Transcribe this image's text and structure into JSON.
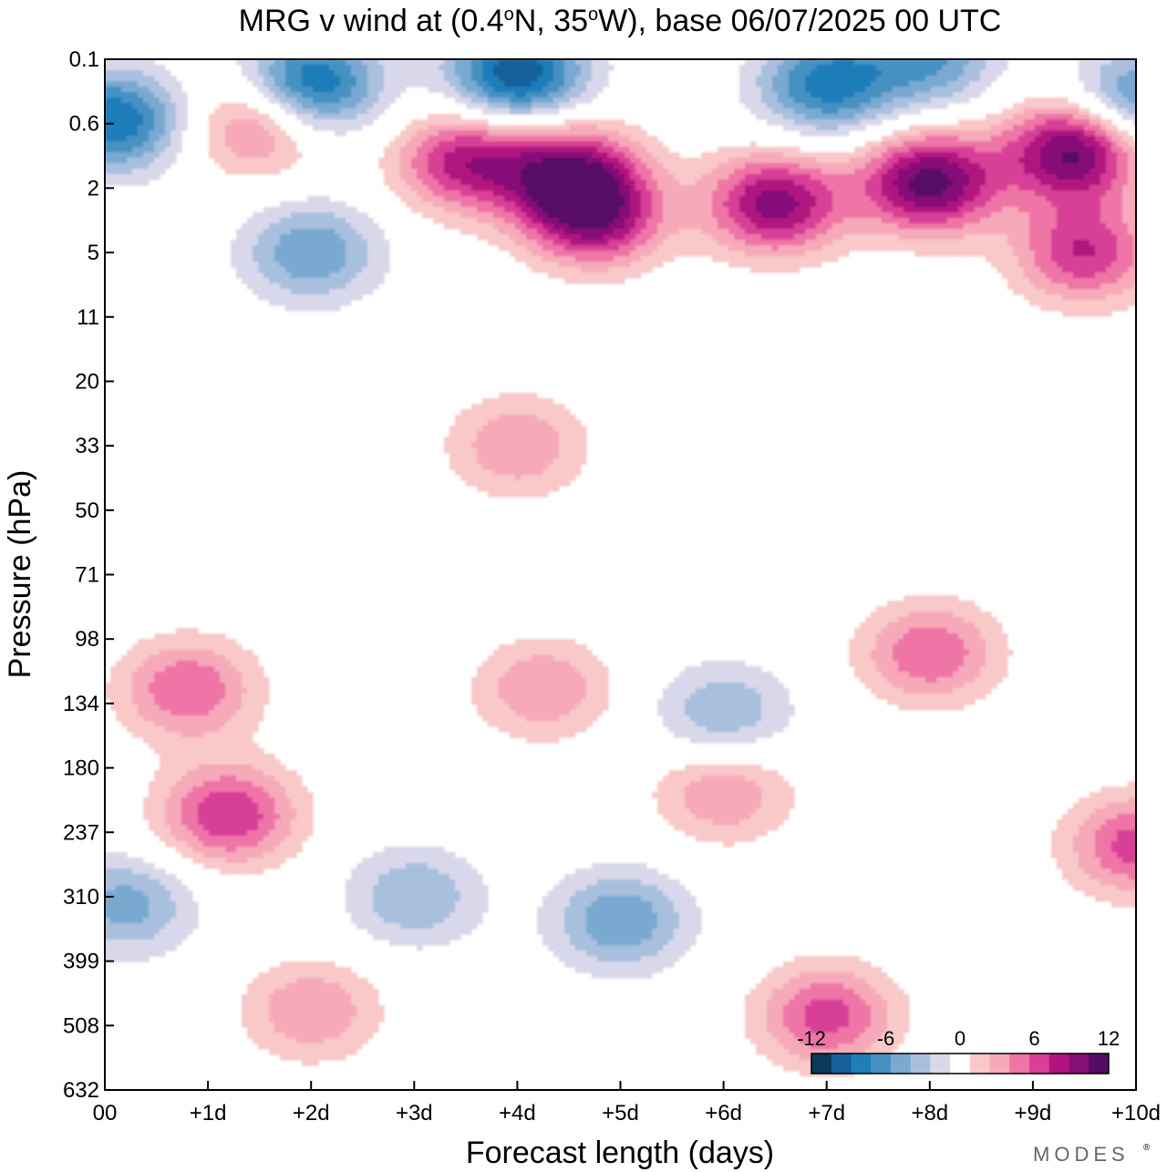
{
  "chart_data": {
    "type": "heatmap",
    "title_parts": [
      "MRG v wind at (0.4",
      "o",
      "N, 35",
      "o",
      "W),  base 06/07/2025  00 UTC"
    ],
    "xlabel": "Forecast length (days)",
    "ylabel": "Pressure (hPa)",
    "x_ticks": [
      "00",
      "+1d",
      "+2d",
      "+3d",
      "+4d",
      "+5d",
      "+6d",
      "+7d",
      "+8d",
      "+9d",
      "+10d"
    ],
    "y_ticks": [
      "0.1",
      "0.6",
      "2",
      "5",
      "11",
      "20",
      "33",
      "50",
      "71",
      "98",
      "134",
      "180",
      "237",
      "310",
      "399",
      "508",
      "632"
    ],
    "x_range_days": [
      0,
      10
    ],
    "y_range_hpa": [
      0.1,
      632
    ],
    "contour_levels": [
      -14,
      -12,
      -10,
      -8,
      -6,
      -4,
      -2,
      2,
      4,
      6,
      8,
      10,
      12,
      14
    ],
    "colorbar": {
      "labels": [
        "-12",
        "-6",
        "0",
        "6",
        "12"
      ],
      "colors": [
        "#0c3a58",
        "#15609a",
        "#1f7db9",
        "#4592c2",
        "#79a9d1",
        "#a9bfde",
        "#d8d8ea",
        "#ffffff",
        "#f9c8c8",
        "#f6a9b9",
        "#ee75a6",
        "#d83f97",
        "#b1137f",
        "#860f78",
        "#560b64"
      ]
    },
    "features": [
      {
        "x_day": 0.1,
        "p_hpa": 0.55,
        "value": -12
      },
      {
        "x_day": 2.0,
        "p_hpa": 0.2,
        "value": -13
      },
      {
        "x_day": 4.0,
        "p_hpa": 0.15,
        "value": -14
      },
      {
        "x_day": 7.0,
        "p_hpa": 0.2,
        "value": -11
      },
      {
        "x_day": 8.0,
        "p_hpa": 0.1,
        "value": -8
      },
      {
        "x_day": 10.0,
        "p_hpa": 0.3,
        "value": -9
      },
      {
        "x_day": 2.0,
        "p_hpa": 5.0,
        "value": -8
      },
      {
        "x_day": 1.5,
        "p_hpa": 0.6,
        "value": 8
      },
      {
        "x_day": 3.5,
        "p_hpa": 1.2,
        "value": 11
      },
      {
        "x_day": 4.5,
        "p_hpa": 1.5,
        "value": 12
      },
      {
        "x_day": 4.75,
        "p_hpa": 3.0,
        "value": 12
      },
      {
        "x_day": 6.5,
        "p_hpa": 2.5,
        "value": 13
      },
      {
        "x_day": 8.0,
        "p_hpa": 1.8,
        "value": 15
      },
      {
        "x_day": 9.4,
        "p_hpa": 1.0,
        "value": 15
      },
      {
        "x_day": 9.5,
        "p_hpa": 5.0,
        "value": 10
      },
      {
        "x_day": 4.0,
        "p_hpa": 33,
        "value": 6
      },
      {
        "x_day": 8.0,
        "p_hpa": 105,
        "value": 8
      },
      {
        "x_day": 4.25,
        "p_hpa": 125,
        "value": 6
      },
      {
        "x_day": 0.8,
        "p_hpa": 125,
        "value": 8
      },
      {
        "x_day": 1.2,
        "p_hpa": 220,
        "value": 10
      },
      {
        "x_day": 6.0,
        "p_hpa": 200,
        "value": 6
      },
      {
        "x_day": 10.0,
        "p_hpa": 250,
        "value": 9
      },
      {
        "x_day": 5.0,
        "p_hpa": 340,
        "value": -8
      },
      {
        "x_day": 3.0,
        "p_hpa": 310,
        "value": -6
      },
      {
        "x_day": 0.2,
        "p_hpa": 320,
        "value": -7
      },
      {
        "x_day": 6.0,
        "p_hpa": 140,
        "value": -6
      },
      {
        "x_day": 7.0,
        "p_hpa": 490,
        "value": 9
      },
      {
        "x_day": 2.0,
        "p_hpa": 480,
        "value": 6
      }
    ]
  },
  "brand": "MODES",
  "brand_mark": "®"
}
